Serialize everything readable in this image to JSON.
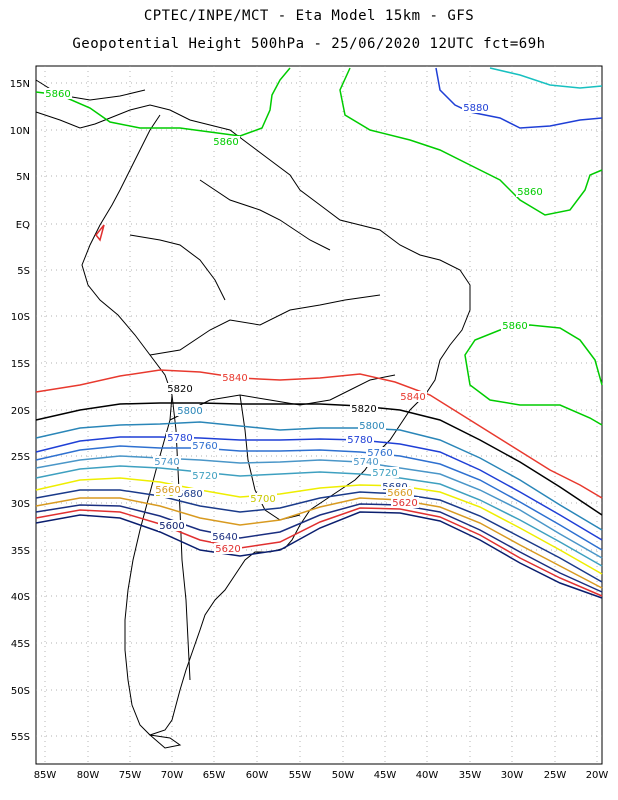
{
  "header": {
    "line1": "CPTEC/INPE/MCT -  Eta Model 15km - GFS",
    "line2": "Geopotential Height 500hPa - 25/06/2020 12UTC fct=69h"
  },
  "map": {
    "lat_labels": [
      "15N",
      "10N",
      "5N",
      "EQ",
      "5S",
      "10S",
      "15S",
      "20S",
      "25S",
      "30S",
      "35S",
      "40S",
      "45S",
      "50S",
      "55S"
    ],
    "lon_labels": [
      "85W",
      "80W",
      "75W",
      "70W",
      "65W",
      "60W",
      "55W",
      "50W",
      "45W",
      "40W",
      "35W",
      "30W",
      "25W",
      "20W"
    ],
    "contours": [
      {
        "value": "5860",
        "color": "#00cc00"
      },
      {
        "value": "5840",
        "color": "#e8392e"
      },
      {
        "value": "5820",
        "color": "#000000"
      },
      {
        "value": "5800",
        "color": "#2a86b8"
      },
      {
        "value": "5780",
        "color": "#1f3fd6"
      },
      {
        "value": "5760",
        "color": "#2e70d0"
      },
      {
        "value": "5740",
        "color": "#4a96c8"
      },
      {
        "value": "5720",
        "color": "#3ea0c0"
      },
      {
        "value": "5700",
        "color": "#eeee00"
      },
      {
        "value": "5680",
        "color": "#1a3a8a"
      },
      {
        "value": "5660",
        "color": "#d89a20"
      },
      {
        "value": "5640",
        "color": "#1a2e80"
      },
      {
        "value": "5620",
        "color": "#e03030"
      },
      {
        "value": "5600",
        "color": "#0a1e6e"
      },
      {
        "value": "5880",
        "color": "#1f3fd6"
      },
      {
        "value": "5900",
        "color": "#18c0c0"
      }
    ],
    "contour_labels": [
      {
        "text": "5860",
        "color": "#00cc00"
      },
      {
        "text": "5860",
        "color": "#00cc00"
      },
      {
        "text": "5860",
        "color": "#00cc00"
      },
      {
        "text": "5860",
        "color": "#00cc00"
      },
      {
        "text": "5880",
        "color": "#1f3fd6"
      },
      {
        "text": "5840",
        "color": "#e8392e"
      },
      {
        "text": "5840",
        "color": "#e8392e"
      },
      {
        "text": "5820",
        "color": "#000000"
      },
      {
        "text": "5820",
        "color": "#000000"
      },
      {
        "text": "5800",
        "color": "#2a86b8"
      },
      {
        "text": "5800",
        "color": "#2a86b8"
      },
      {
        "text": "5780",
        "color": "#1f3fd6"
      },
      {
        "text": "5780",
        "color": "#1f3fd6"
      },
      {
        "text": "5760",
        "color": "#2e70d0"
      },
      {
        "text": "5760",
        "color": "#2e70d0"
      },
      {
        "text": "5740",
        "color": "#4a96c8"
      },
      {
        "text": "5740",
        "color": "#4a96c8"
      },
      {
        "text": "5720",
        "color": "#3ea0c0"
      },
      {
        "text": "5720",
        "color": "#3ea0c0"
      },
      {
        "text": "5700",
        "color": "#c8c800"
      },
      {
        "text": "5700",
        "color": "#c8c800"
      },
      {
        "text": "5680",
        "color": "#1a3a8a"
      },
      {
        "text": "5680",
        "color": "#1a3a8a"
      },
      {
        "text": "5660",
        "color": "#d89a20"
      },
      {
        "text": "5660",
        "color": "#d89a20"
      },
      {
        "text": "5640",
        "color": "#1a2e80"
      },
      {
        "text": "5620",
        "color": "#e03030"
      },
      {
        "text": "5620",
        "color": "#e03030"
      },
      {
        "text": "5600",
        "color": "#0a1e6e"
      }
    ]
  }
}
